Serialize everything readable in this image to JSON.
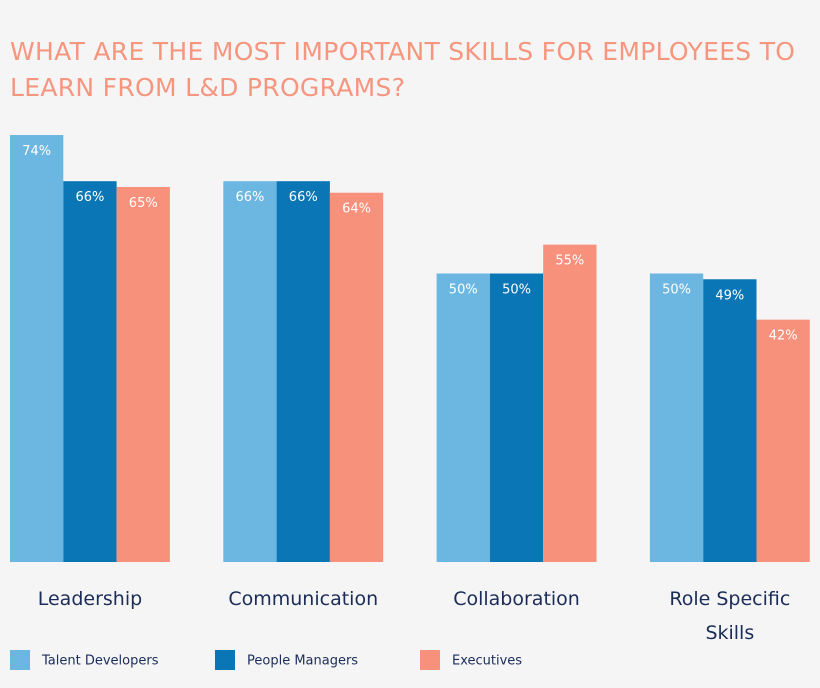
{
  "chart_data": {
    "type": "bar",
    "title": "WHAT ARE THE MOST IMPORTANT SKILLS FOR EMPLOYEES TO LEARN FROM L&D PROGRAMS?",
    "categories": [
      "Leadership",
      "Communication",
      "Collaboration",
      "Role Specific Skills"
    ],
    "series": [
      {
        "name": "Talent Developers",
        "color": "#6cb7e2",
        "values": [
          74,
          66,
          50,
          50
        ],
        "value_labels": [
          "74%",
          "66%",
          "50%",
          "50%"
        ]
      },
      {
        "name": "People Managers",
        "color": "#0b76b5",
        "values": [
          66,
          66,
          50,
          49
        ],
        "value_labels": [
          "66%",
          "66%",
          "50%",
          "49%"
        ]
      },
      {
        "name": "Executives",
        "color": "#f8917b",
        "values": [
          65,
          64,
          55,
          42
        ],
        "value_labels": [
          "65%",
          "64%",
          "55%",
          "42%"
        ]
      }
    ]
  }
}
